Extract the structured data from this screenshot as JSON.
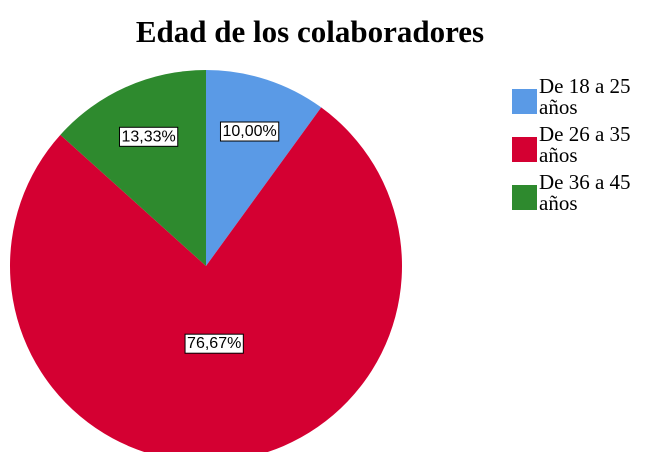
{
  "chart_data": {
    "type": "pie",
    "title": "Edad de los colaboradores",
    "categories": [
      "De 18 a 25 años",
      "De 26 a 35 años",
      "De 36 a 45 años"
    ],
    "values": [
      10.0,
      76.67,
      13.33
    ],
    "value_labels": [
      "10,00%",
      "76,67%",
      "13,33%"
    ],
    "colors": [
      "#5a9ae6",
      "#d40032",
      "#2e8a2e"
    ],
    "legend": "right"
  }
}
